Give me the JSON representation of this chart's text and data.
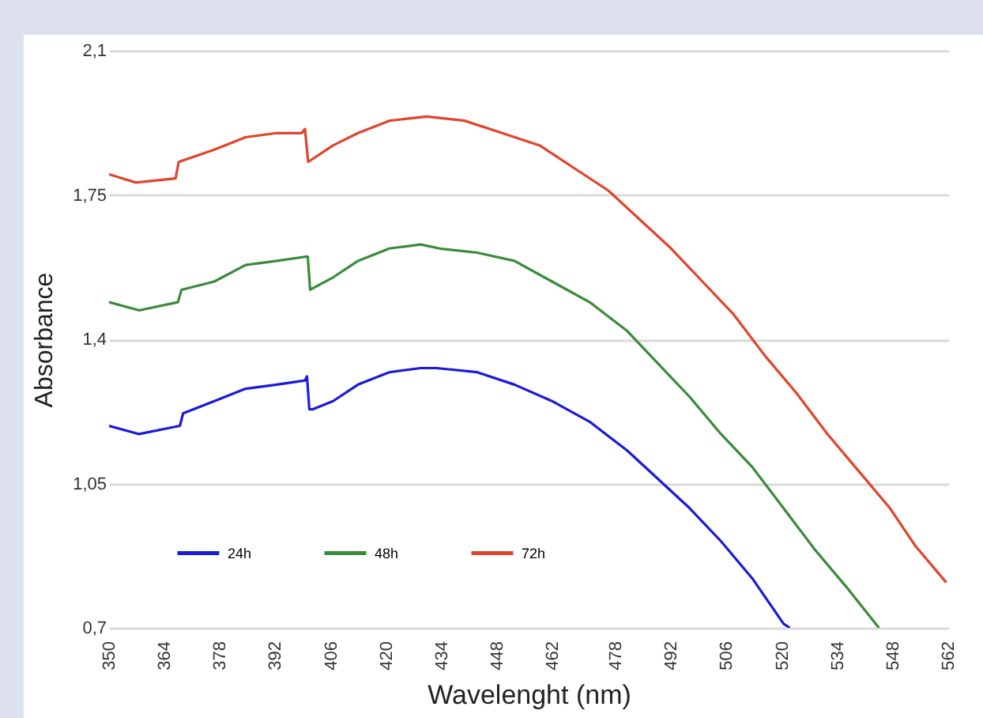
{
  "chart_data": {
    "type": "line",
    "xlabel": "Wavelenght (nm)",
    "ylabel": "Absorbance",
    "xlim": [
      350,
      562
    ],
    "xticks": [
      350,
      364,
      378,
      392,
      406,
      420,
      434,
      448,
      462,
      478,
      492,
      506,
      520,
      534,
      548,
      562
    ],
    "ylim": [
      0.7,
      2.1
    ],
    "yticks": [
      {
        "value": 0.7,
        "label": "0,7"
      },
      {
        "value": 1.05,
        "label": "1,05"
      },
      {
        "value": 1.4,
        "label": "1,4"
      },
      {
        "value": 1.75,
        "label": "1,75"
      },
      {
        "value": 2.1,
        "label": "2,1"
      }
    ],
    "grid": "y",
    "legend": "bottom left",
    "series": [
      {
        "name": "24h",
        "color": "#1a1adb",
        "x": [
          350,
          357.6,
          367.9,
          368.7,
          376.6,
          384.5,
          392.4,
          399.5,
          400,
          400.6,
          401.4,
          406.6,
          412.9,
          420.8,
          428.7,
          432.7,
          443,
          452.4,
          461.9,
          471.4,
          480.9,
          488.8,
          496.7,
          504.6,
          512.5,
          520.4,
          522
        ],
        "values": [
          1.19,
          1.17,
          1.19,
          1.22,
          1.25,
          1.28,
          1.29,
          1.3,
          1.31,
          1.23,
          1.23,
          1.25,
          1.29,
          1.32,
          1.33,
          1.33,
          1.32,
          1.29,
          1.25,
          1.2,
          1.13,
          1.06,
          0.99,
          0.91,
          0.82,
          0.71,
          0.7
        ]
      },
      {
        "name": "48h",
        "color": "#3a8a3a",
        "x": [
          350,
          357.6,
          367.4,
          368.3,
          376.6,
          384.5,
          392.4,
          399.5,
          400.2,
          400.8,
          406.6,
          412.9,
          420.8,
          428.7,
          433.5,
          443,
          452.4,
          461.9,
          471.4,
          480.9,
          488.8,
          496.7,
          504.6,
          512.5,
          520.4,
          528.3,
          536.2,
          544.5
        ],
        "values": [
          1.49,
          1.47,
          1.49,
          1.52,
          1.54,
          1.58,
          1.59,
          1.6,
          1.6,
          1.52,
          1.55,
          1.59,
          1.62,
          1.63,
          1.62,
          1.61,
          1.59,
          1.54,
          1.49,
          1.42,
          1.34,
          1.26,
          1.17,
          1.09,
          0.99,
          0.89,
          0.8,
          0.7
        ]
      },
      {
        "name": "72h",
        "color": "#e0442c",
        "x": [
          350,
          356.8,
          366.8,
          367.6,
          376.6,
          384.5,
          392.4,
          398.7,
          399.5,
          400.3,
          406.6,
          412.9,
          420.8,
          430.3,
          439.8,
          449.3,
          458.8,
          468.3,
          476.2,
          484.1,
          492,
          499.9,
          507.8,
          515.7,
          523.6,
          531.5,
          539.4,
          547.3,
          553.6,
          561.5
        ],
        "values": [
          1.8,
          1.78,
          1.79,
          1.83,
          1.86,
          1.89,
          1.9,
          1.9,
          1.91,
          1.83,
          1.87,
          1.9,
          1.93,
          1.94,
          1.93,
          1.9,
          1.87,
          1.81,
          1.76,
          1.69,
          1.62,
          1.54,
          1.46,
          1.36,
          1.27,
          1.17,
          1.08,
          0.99,
          0.9,
          0.81
        ]
      }
    ]
  }
}
